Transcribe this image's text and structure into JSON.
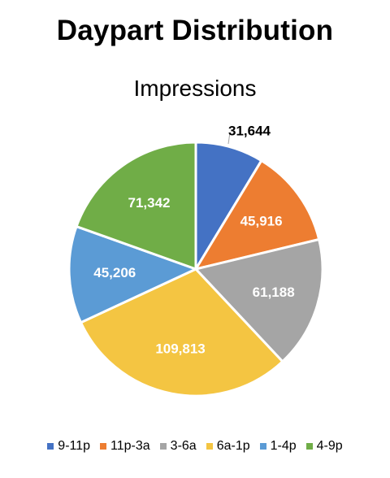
{
  "page": {
    "title": "Daypart Distribution"
  },
  "chart_data": {
    "type": "pie",
    "title": "Impressions",
    "categories": [
      "9-11p",
      "11p-3a",
      "3-6a",
      "6a-1p",
      "1-4p",
      "4-9p"
    ],
    "values": [
      31644,
      45916,
      61188,
      109813,
      45206,
      71342
    ],
    "data_labels": [
      "31,644",
      "45,916",
      "61,188",
      "109,813",
      "45,206",
      "71,342"
    ],
    "colors": [
      "#4472C4",
      "#ED7D31",
      "#A5A5A5",
      "#F4C542",
      "#5B9BD5",
      "#70AD47"
    ],
    "start": "12 o'clock",
    "direction": "clockwise",
    "legend": "bottom"
  }
}
